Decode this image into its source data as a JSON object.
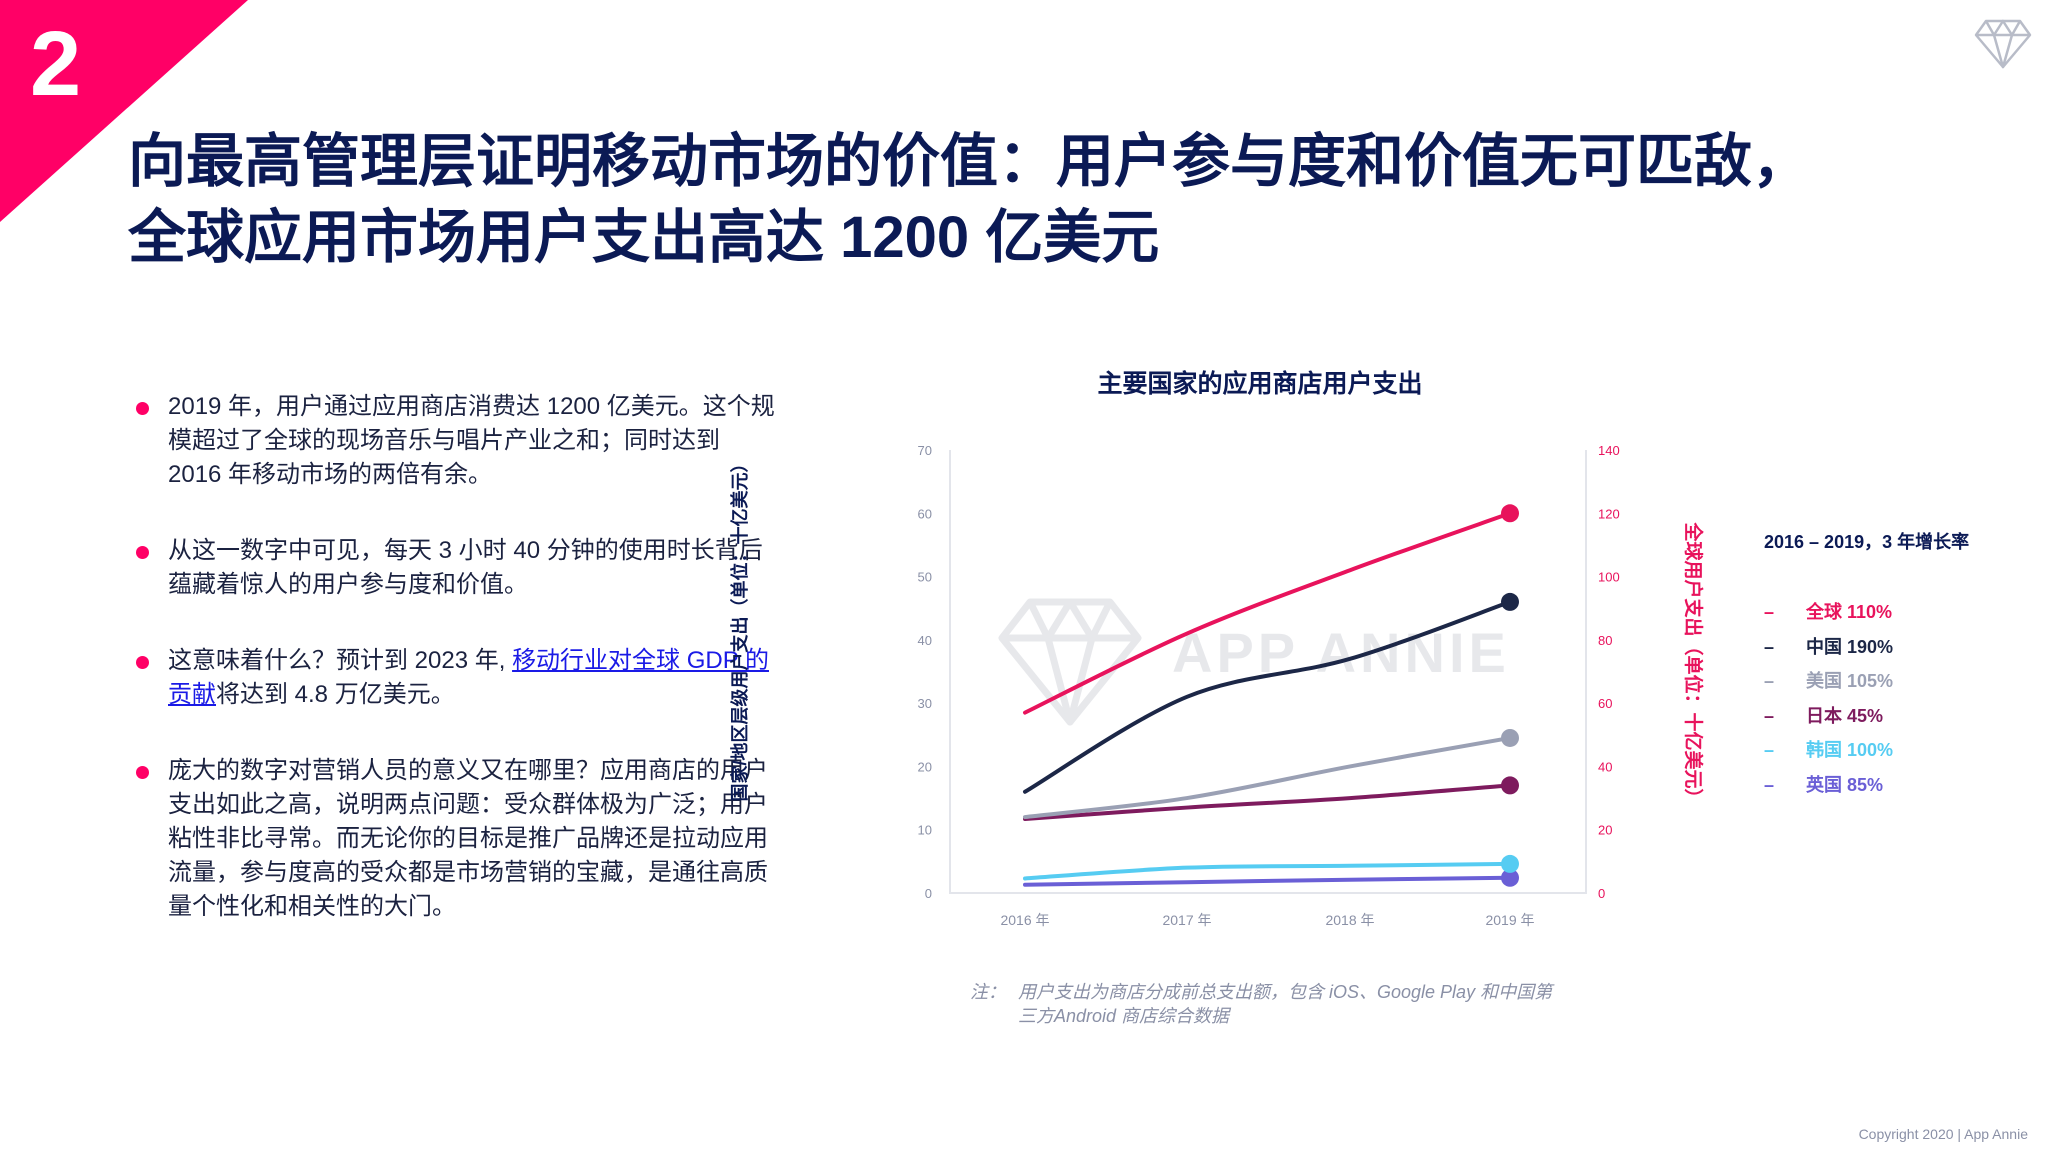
{
  "slide_number": "2",
  "title_lines": [
    "向最高管理层证明移动市场的价值：用户参与度和价值无可匹敌，",
    "全球应用市场用户支出高达 1200 亿美元"
  ],
  "bullets": [
    {
      "text": "2019 年，用户通过应用商店消费达 1200 亿美元。这个规模超过了全球的现场音乐与唱片产业之和；同时达到 2016 年移动市场的两倍有余。"
    },
    {
      "text": "从这一数字中可见，每天 3 小时 40 分钟的使用时长背后蕴藏着惊人的用户参与度和价值。"
    },
    {
      "text_before": "这意味着什么？预计到 2023 年, ",
      "link": "移动行业对全球 GDP 的贡献",
      "text_after": "将达到 4.8 万亿美元。"
    },
    {
      "text": "庞大的数字对营销人员的意义又在哪里？应用商店的用户支出如此之高，说明两点问题：受众群体极为广泛；用户粘性非比寻常。而无论你的目标是推广品牌还是拉动应用流量，参与度高的受众都是市场营销的宝藏，是通往高质量个性化和相关性的大门。"
    }
  ],
  "chart_data": {
    "type": "line",
    "title": "主要国家的应用商店用户支出",
    "x": [
      "2016 年",
      "2017 年",
      "2018 年",
      "2019 年"
    ],
    "ylabel_left": "国家/地区层级用户支出（单位：十亿美元）",
    "ylabel_right": "全球用户支出（单位：十亿美元）",
    "ylim_left": [
      0,
      70
    ],
    "ylim_right": [
      0,
      140
    ],
    "yticks_left": [
      0,
      10,
      20,
      30,
      40,
      50,
      60,
      70
    ],
    "yticks_right": [
      0,
      20,
      40,
      60,
      80,
      100,
      120,
      140
    ],
    "series": [
      {
        "name": "全球",
        "growth": "110%",
        "color": "#e8135c",
        "axis": "right",
        "values": [
          57,
          82,
          102,
          120
        ]
      },
      {
        "name": "中国",
        "growth": "190%",
        "color": "#1c2747",
        "axis": "left",
        "values": [
          16,
          31,
          37,
          46
        ]
      },
      {
        "name": "美国",
        "growth": "105%",
        "color": "#9aa0b4",
        "axis": "left",
        "values": [
          12,
          15,
          20,
          24.5
        ]
      },
      {
        "name": "日本",
        "growth": "45%",
        "color": "#7e1b5e",
        "axis": "left",
        "values": [
          11.7,
          13.5,
          15,
          17
        ]
      },
      {
        "name": "韩国",
        "growth": "100%",
        "color": "#56ccf2",
        "axis": "left",
        "values": [
          2.3,
          4,
          4.3,
          4.6
        ]
      },
      {
        "name": "英国",
        "growth": "85%",
        "color": "#6a5fd6",
        "axis": "left",
        "values": [
          1.3,
          1.7,
          2.1,
          2.4
        ]
      }
    ],
    "growth_title": "2016 – 2019，3 年增长率",
    "note_label": "注：",
    "note_lines": [
      "用户支出为商店分成前总支出额，包含 iOS、Google Play 和中国第",
      "三方Android 商店综合数据"
    ],
    "watermark": "APP ANNIE",
    "grid": false
  },
  "copyright": "Copyright 2020  |  App Annie"
}
